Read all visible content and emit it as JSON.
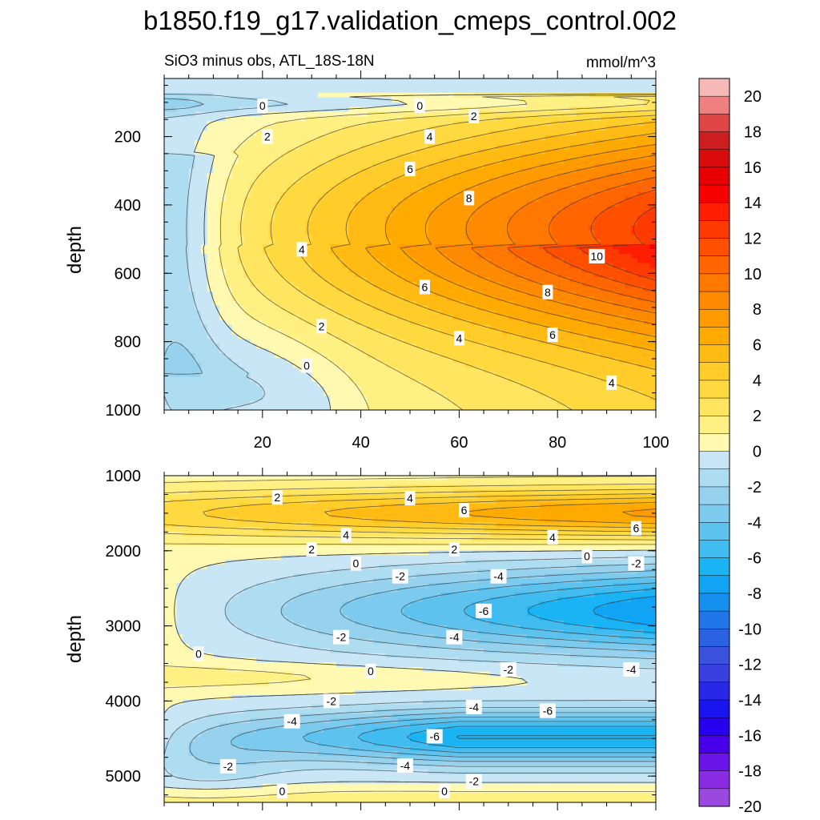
{
  "title": "b1850.f19_g17.validation_cmeps_control.002",
  "chart_data": [
    {
      "type": "contour",
      "panel": "upper",
      "left_label": "SiO3 minus obs, ATL_18S-18N",
      "right_label": "mmol/m^3",
      "ylabel": "depth",
      "xlabel": "",
      "xlim": [
        0,
        100
      ],
      "ylim": [
        1000,
        30
      ],
      "x_ticks": [
        20,
        40,
        60,
        80,
        100
      ],
      "y_ticks": [
        200,
        400,
        600,
        800,
        1000
      ],
      "contour_interval": 1,
      "contour_labels": [
        {
          "text": "0",
          "x": 20,
          "y": 110
        },
        {
          "text": "0",
          "x": 52,
          "y": 110
        },
        {
          "text": "2",
          "x": 63,
          "y": 140
        },
        {
          "text": "2",
          "x": 21,
          "y": 200
        },
        {
          "text": "4",
          "x": 54,
          "y": 200
        },
        {
          "text": "6",
          "x": 50,
          "y": 295
        },
        {
          "text": "8",
          "x": 62,
          "y": 380
        },
        {
          "text": "4",
          "x": 28,
          "y": 530
        },
        {
          "text": "10",
          "x": 88,
          "y": 550
        },
        {
          "text": "6",
          "x": 53,
          "y": 640
        },
        {
          "text": "8",
          "x": 78,
          "y": 655
        },
        {
          "text": "2",
          "x": 32,
          "y": 755
        },
        {
          "text": "4",
          "x": 60,
          "y": 790
        },
        {
          "text": "6",
          "x": 79,
          "y": 780
        },
        {
          "text": "0",
          "x": 29,
          "y": 870
        },
        {
          "text": "4",
          "x": 91,
          "y": 920
        }
      ]
    },
    {
      "type": "contour",
      "panel": "lower",
      "ylabel": "depth",
      "xlabel": "",
      "xlim": [
        0,
        100
      ],
      "ylim": [
        5350,
        1000
      ],
      "y_ticks": [
        1000,
        2000,
        3000,
        4000,
        5000
      ],
      "contour_interval": 1,
      "contour_labels": [
        {
          "text": "2",
          "x": 23,
          "y": 1290
        },
        {
          "text": "4",
          "x": 50,
          "y": 1300
        },
        {
          "text": "6",
          "x": 61,
          "y": 1460
        },
        {
          "text": "6",
          "x": 96,
          "y": 1700
        },
        {
          "text": "4",
          "x": 37,
          "y": 1790
        },
        {
          "text": "4",
          "x": 79,
          "y": 1820
        },
        {
          "text": "2",
          "x": 30,
          "y": 1980
        },
        {
          "text": "2",
          "x": 59,
          "y": 1980
        },
        {
          "text": "0",
          "x": 39,
          "y": 2170
        },
        {
          "text": "0",
          "x": 86,
          "y": 2070
        },
        {
          "text": "-2",
          "x": 96,
          "y": 2170
        },
        {
          "text": "-2",
          "x": 48,
          "y": 2340
        },
        {
          "text": "-4",
          "x": 68,
          "y": 2340
        },
        {
          "text": "-6",
          "x": 65,
          "y": 2800
        },
        {
          "text": "-2",
          "x": 36,
          "y": 3150
        },
        {
          "text": "-4",
          "x": 59,
          "y": 3150
        },
        {
          "text": "0",
          "x": 7,
          "y": 3370
        },
        {
          "text": "0",
          "x": 42,
          "y": 3600
        },
        {
          "text": "-2",
          "x": 70,
          "y": 3580
        },
        {
          "text": "-4",
          "x": 95,
          "y": 3580
        },
        {
          "text": "-2",
          "x": 34,
          "y": 4000
        },
        {
          "text": "-4",
          "x": 63,
          "y": 4080
        },
        {
          "text": "-6",
          "x": 78,
          "y": 4130
        },
        {
          "text": "-4",
          "x": 26,
          "y": 4270
        },
        {
          "text": "-6",
          "x": 55,
          "y": 4470
        },
        {
          "text": "-2",
          "x": 13,
          "y": 4870
        },
        {
          "text": "-4",
          "x": 49,
          "y": 4860
        },
        {
          "text": "-2",
          "x": 63,
          "y": 5070
        },
        {
          "text": "0",
          "x": 24,
          "y": 5200
        },
        {
          "text": "0",
          "x": 57,
          "y": 5200
        }
      ]
    }
  ],
  "colorbar": {
    "labels": [
      "20",
      "18",
      "16",
      "14",
      "12",
      "10",
      "8",
      "6",
      "4",
      "2",
      "0",
      "-2",
      "-4",
      "-6",
      "-8",
      "-10",
      "-12",
      "-14",
      "-16",
      "-18",
      "-20"
    ],
    "colors": [
      "#f7b8b8",
      "#f08080",
      "#e04545",
      "#cc1e1e",
      "#d90b0b",
      "#e80000",
      "#f60000",
      "#ff1e00",
      "#ff3a00",
      "#ff5000",
      "#ff6600",
      "#ff7800",
      "#ff8a00",
      "#ff9a00",
      "#ffaa00",
      "#ffbb14",
      "#ffcc2a",
      "#ffd940",
      "#ffe560",
      "#fff084",
      "#fff9b2",
      "#c8e6f5",
      "#aedcf0",
      "#96d2ee",
      "#7ccaee",
      "#5ec2ee",
      "#40bcf0",
      "#1ab4f4",
      "#12a4f4",
      "#1690f0",
      "#2078e8",
      "#2a62e2",
      "#3a52dc",
      "#3a40e0",
      "#2a28e8",
      "#1a14f0",
      "#2800ee",
      "#4800ea",
      "#6a14e8",
      "#8a2ce4",
      "#9a48e0"
    ]
  }
}
